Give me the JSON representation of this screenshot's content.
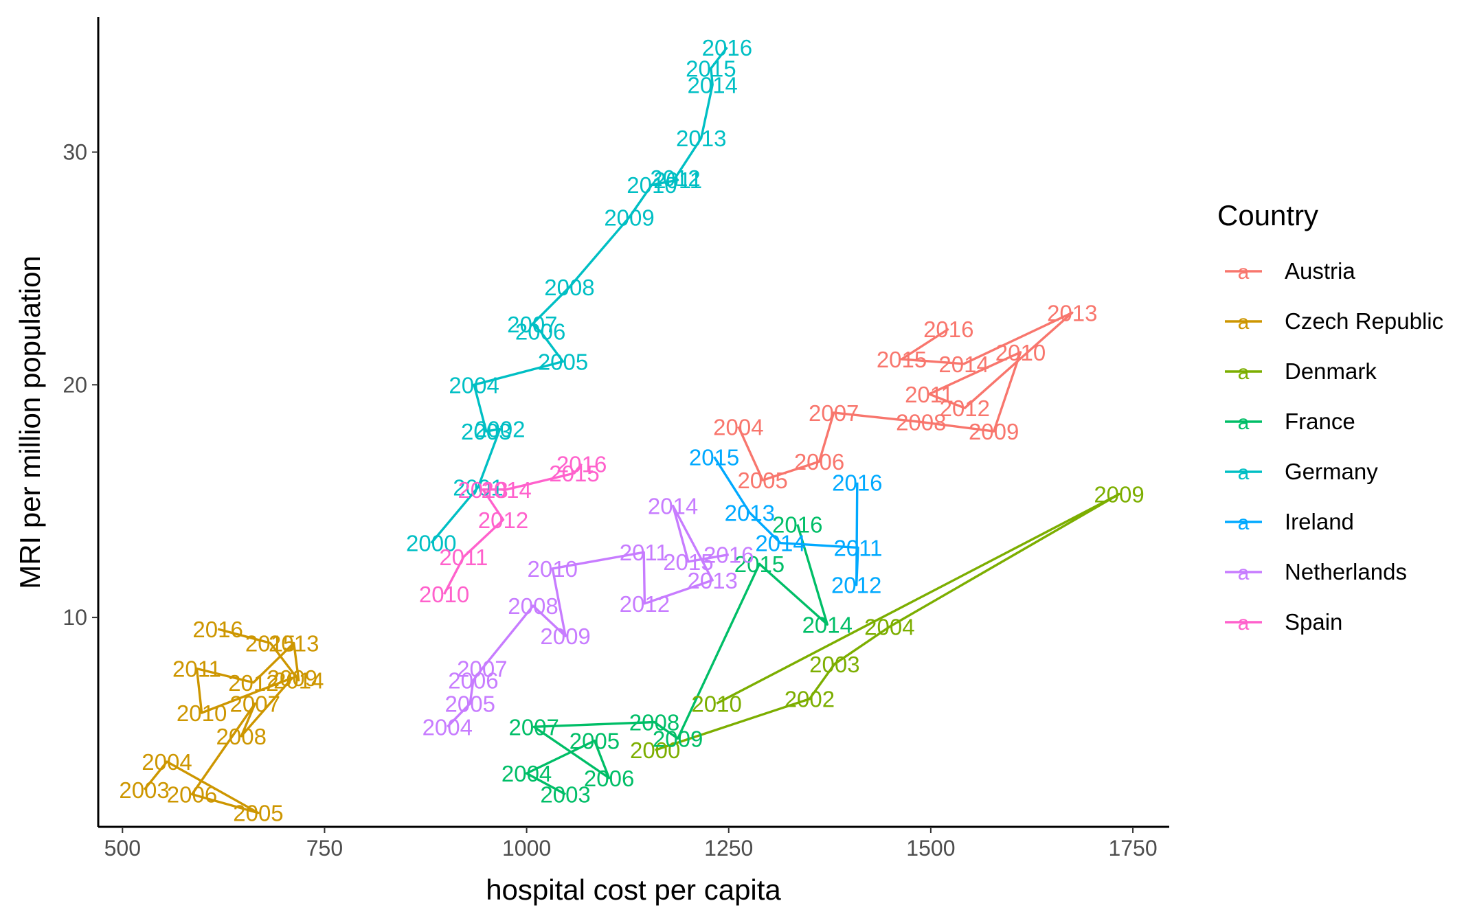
{
  "chart_data": {
    "type": "line",
    "title": "",
    "xlabel": "hospital cost per capita",
    "ylabel": "MRI per million population",
    "xlim": [
      470,
      1795
    ],
    "ylim": [
      1.0,
      35.8
    ],
    "x_ticks": [
      500,
      750,
      1000,
      1250,
      1500,
      1750
    ],
    "y_ticks": [
      10,
      20,
      30
    ],
    "grid": false,
    "legend": {
      "title": "Country",
      "position": "right",
      "key_glyph": "a"
    },
    "series": [
      {
        "name": "Austria",
        "color": "#F8766D",
        "points": [
          {
            "x": 1262,
            "y": 18.2,
            "year": "2004"
          },
          {
            "x": 1292,
            "y": 15.9,
            "year": "2005"
          },
          {
            "x": 1362,
            "y": 16.7,
            "year": "2006"
          },
          {
            "x": 1380,
            "y": 18.8,
            "year": "2007"
          },
          {
            "x": 1488,
            "y": 18.4,
            "year": "2008"
          },
          {
            "x": 1578,
            "y": 18.0,
            "year": "2009"
          },
          {
            "x": 1611,
            "y": 21.4,
            "year": "2010"
          },
          {
            "x": 1498,
            "y": 19.6,
            "year": "2011"
          },
          {
            "x": 1542,
            "y": 19.0,
            "year": "2012"
          },
          {
            "x": 1675,
            "y": 23.1,
            "year": "2013"
          },
          {
            "x": 1541,
            "y": 20.9,
            "year": "2014"
          },
          {
            "x": 1464,
            "y": 21.1,
            "year": "2015"
          },
          {
            "x": 1522,
            "y": 22.4,
            "year": "2016"
          }
        ]
      },
      {
        "name": "Czech Republic",
        "color": "#CD9600",
        "points": [
          {
            "x": 527,
            "y": 2.6,
            "year": "2003"
          },
          {
            "x": 555,
            "y": 3.8,
            "year": "2004"
          },
          {
            "x": 668,
            "y": 1.6,
            "year": "2005"
          },
          {
            "x": 586,
            "y": 2.4,
            "year": "2006"
          },
          {
            "x": 664,
            "y": 6.3,
            "year": "2007"
          },
          {
            "x": 647,
            "y": 4.9,
            "year": "2008"
          },
          {
            "x": 710,
            "y": 7.4,
            "year": "2009"
          },
          {
            "x": 598,
            "y": 5.9,
            "year": "2010"
          },
          {
            "x": 592,
            "y": 7.8,
            "year": "2011"
          },
          {
            "x": 662,
            "y": 7.2,
            "year": "2012"
          },
          {
            "x": 712,
            "y": 8.9,
            "year": "2013"
          },
          {
            "x": 718,
            "y": 7.3,
            "year": "2014"
          },
          {
            "x": 683,
            "y": 8.9,
            "year": "2015"
          },
          {
            "x": 618,
            "y": 9.5,
            "year": "2016"
          }
        ]
      },
      {
        "name": "Denmark",
        "color": "#7CAE00",
        "points": [
          {
            "x": 1159,
            "y": 4.3,
            "year": "2000"
          },
          {
            "x": 1350,
            "y": 6.5,
            "year": "2002"
          },
          {
            "x": 1381,
            "y": 8.0,
            "year": "2003"
          },
          {
            "x": 1449,
            "y": 9.6,
            "year": "2004"
          },
          {
            "x": 1733,
            "y": 15.3,
            "year": "2009"
          },
          {
            "x": 1235,
            "y": 6.3,
            "year": "2010"
          }
        ]
      },
      {
        "name": "France",
        "color": "#00BE67",
        "points": [
          {
            "x": 1048,
            "y": 2.4,
            "year": "2003"
          },
          {
            "x": 1000,
            "y": 3.3,
            "year": "2004"
          },
          {
            "x": 1084,
            "y": 4.7,
            "year": "2005"
          },
          {
            "x": 1102,
            "y": 3.1,
            "year": "2006"
          },
          {
            "x": 1009,
            "y": 5.3,
            "year": "2007"
          },
          {
            "x": 1158,
            "y": 5.5,
            "year": "2008"
          },
          {
            "x": 1187,
            "y": 4.8,
            "year": "2009"
          },
          {
            "x": 1288,
            "y": 12.3,
            "year": "2015"
          },
          {
            "x": 1372,
            "y": 9.7,
            "year": "2014"
          },
          {
            "x": 1335,
            "y": 14.0,
            "year": "2016"
          }
        ]
      },
      {
        "name": "Germany",
        "color": "#00BFC4",
        "points": [
          {
            "x": 882,
            "y": 13.2,
            "year": "2000"
          },
          {
            "x": 940,
            "y": 15.6,
            "year": "2001"
          },
          {
            "x": 967,
            "y": 18.1,
            "year": "2002"
          },
          {
            "x": 950,
            "y": 18.0,
            "year": "2003"
          },
          {
            "x": 935,
            "y": 20.0,
            "year": "2004"
          },
          {
            "x": 1045,
            "y": 21.0,
            "year": "2005"
          },
          {
            "x": 1017,
            "y": 22.3,
            "year": "2006"
          },
          {
            "x": 1007,
            "y": 22.6,
            "year": "2007"
          },
          {
            "x": 1053,
            "y": 24.2,
            "year": "2008"
          },
          {
            "x": 1127,
            "y": 27.2,
            "year": "2009"
          },
          {
            "x": 1155,
            "y": 28.6,
            "year": "2010"
          },
          {
            "x": 1187,
            "y": 28.8,
            "year": "2011"
          },
          {
            "x": 1184,
            "y": 28.9,
            "year": "2012"
          },
          {
            "x": 1216,
            "y": 30.6,
            "year": "2013"
          },
          {
            "x": 1230,
            "y": 32.9,
            "year": "2014"
          },
          {
            "x": 1228,
            "y": 33.6,
            "year": "2015"
          },
          {
            "x": 1248,
            "y": 34.5,
            "year": "2016"
          }
        ]
      },
      {
        "name": "Ireland",
        "color": "#00A9FF",
        "points": [
          {
            "x": 1232,
            "y": 16.9,
            "year": "2015"
          },
          {
            "x": 1276,
            "y": 14.5,
            "year": "2013"
          },
          {
            "x": 1314,
            "y": 13.2,
            "year": "2014"
          },
          {
            "x": 1410,
            "y": 13.0,
            "year": "2011"
          },
          {
            "x": 1408,
            "y": 11.4,
            "year": "2012"
          },
          {
            "x": 1409,
            "y": 15.8,
            "year": "2016"
          }
        ]
      },
      {
        "name": "Netherlands",
        "color": "#C77CFF",
        "points": [
          {
            "x": 902,
            "y": 5.3,
            "year": "2004"
          },
          {
            "x": 930,
            "y": 6.3,
            "year": "2005"
          },
          {
            "x": 934,
            "y": 7.3,
            "year": "2006"
          },
          {
            "x": 945,
            "y": 7.8,
            "year": "2007"
          },
          {
            "x": 1008,
            "y": 10.5,
            "year": "2008"
          },
          {
            "x": 1048,
            "y": 9.2,
            "year": "2009"
          },
          {
            "x": 1032,
            "y": 12.1,
            "year": "2010"
          },
          {
            "x": 1145,
            "y": 12.8,
            "year": "2011"
          },
          {
            "x": 1146,
            "y": 10.6,
            "year": "2012"
          },
          {
            "x": 1230,
            "y": 11.6,
            "year": "2013"
          },
          {
            "x": 1181,
            "y": 14.8,
            "year": "2014"
          },
          {
            "x": 1200,
            "y": 12.4,
            "year": "2015"
          },
          {
            "x": 1250,
            "y": 12.7,
            "year": "2016"
          }
        ]
      },
      {
        "name": "Spain",
        "color": "#FF61CC",
        "points": [
          {
            "x": 898,
            "y": 11.0,
            "year": "2010"
          },
          {
            "x": 922,
            "y": 12.6,
            "year": "2011"
          },
          {
            "x": 971,
            "y": 14.2,
            "year": "2012"
          },
          {
            "x": 946,
            "y": 15.5,
            "year": "2013"
          },
          {
            "x": 975,
            "y": 15.5,
            "year": "2014"
          },
          {
            "x": 1059,
            "y": 16.2,
            "year": "2015"
          },
          {
            "x": 1068,
            "y": 16.6,
            "year": "2016"
          }
        ]
      }
    ]
  }
}
